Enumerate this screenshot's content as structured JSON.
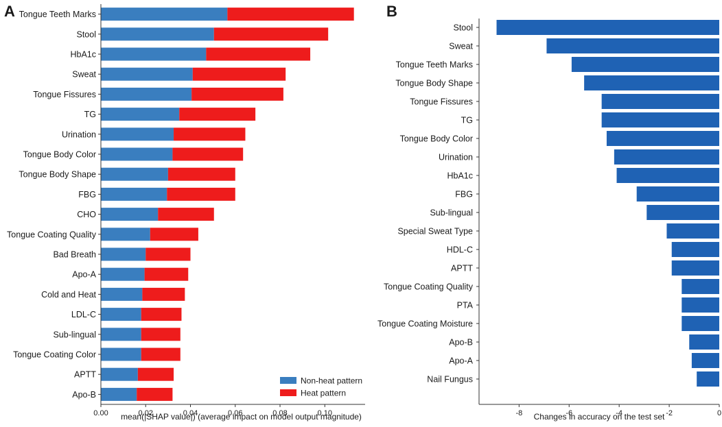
{
  "panel_labels": {
    "a": "A",
    "b": "B"
  },
  "colors": {
    "non_heat": "#3a7ebf",
    "heat": "#ee1c1c",
    "panel_b": "#1f62b4",
    "axis": "#333333",
    "text": "#1a1a1a"
  },
  "chart_data": [
    {
      "type": "bar",
      "orientation": "horizontal",
      "stacked": true,
      "panel": "A",
      "title": "",
      "xlabel": "mean(|SHAP value|) (average impact on model output magnitude)",
      "ylabel": "",
      "xlim": [
        0,
        0.118
      ],
      "xticks": [
        0,
        0.02,
        0.04,
        0.06,
        0.08,
        0.1
      ],
      "xtick_labels": [
        "0.00",
        "0.02",
        "0.04",
        "0.06",
        "0.08",
        "0.10"
      ],
      "legend_position": "bottom-right",
      "categories": [
        "Tongue Teeth Marks",
        "Stool",
        "HbA1c",
        "Sweat",
        "Tongue Fissures",
        "TG",
        "Urination",
        "Tongue Body Color",
        "Tongue Body Shape",
        "FBG",
        "CHO",
        "Tongue Coating Quality",
        "Bad Breath",
        "Apo-A",
        "Cold and Heat",
        "LDL-C",
        "Sub-lingual",
        "Tongue Coating Color",
        "APTT",
        "Apo-B"
      ],
      "series": [
        {
          "name": "Non-heat pattern",
          "color": "#3a7ebf",
          "values": [
            0.0565,
            0.0505,
            0.047,
            0.041,
            0.0405,
            0.035,
            0.0325,
            0.032,
            0.03,
            0.0295,
            0.0255,
            0.022,
            0.02,
            0.0195,
            0.0185,
            0.018,
            0.018,
            0.018,
            0.0165,
            0.016
          ]
        },
        {
          "name": "Heat pattern",
          "color": "#ee1c1c",
          "values": [
            0.0565,
            0.051,
            0.0465,
            0.0415,
            0.041,
            0.034,
            0.032,
            0.0315,
            0.03,
            0.0305,
            0.025,
            0.0215,
            0.02,
            0.0195,
            0.019,
            0.018,
            0.0175,
            0.0175,
            0.016,
            0.016
          ]
        }
      ]
    },
    {
      "type": "bar",
      "orientation": "horizontal",
      "panel": "B",
      "title": "",
      "xlabel": "Changes in accuracy on the test set",
      "ylabel": "",
      "xlim": [
        -9.6,
        0
      ],
      "xticks": [
        -8,
        -6,
        -4,
        -2,
        0
      ],
      "xtick_labels": [
        "-8",
        "-6",
        "-4",
        "-2",
        "0"
      ],
      "categories": [
        "Stool",
        "Sweat",
        "Tongue Teeth Marks",
        "Tongue Body Shape",
        "Tongue Fissures",
        "TG",
        "Tongue Body Color",
        "Urination",
        "HbA1c",
        "FBG",
        "Sub-lingual",
        "Special Sweat Type",
        "HDL-C",
        "APTT",
        "Tongue Coating Quality",
        "PTA",
        "Tongue Coating Moisture",
        "Apo-B",
        "Apo-A",
        "Nail Fungus"
      ],
      "values": [
        -8.9,
        -6.9,
        -5.9,
        -5.4,
        -4.7,
        -4.7,
        -4.5,
        -4.2,
        -4.1,
        -3.3,
        -2.9,
        -2.1,
        -1.9,
        -1.9,
        -1.5,
        -1.5,
        -1.5,
        -1.2,
        -1.1,
        -0.9
      ]
    }
  ]
}
